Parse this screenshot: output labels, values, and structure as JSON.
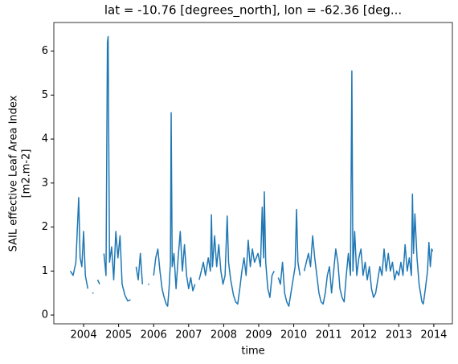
{
  "chart_data": {
    "type": "line",
    "title": "lat = -10.76 [degrees_north], lon = -62.36 [deg...",
    "xlabel": "time",
    "ylabel": [
      "SAIL effective Leaf Area Index",
      "[m2.m-2]"
    ],
    "xlim": [
      2003.15,
      2014.53
    ],
    "ylim": [
      -0.2,
      6.65
    ],
    "xticks": [
      2004,
      2005,
      2006,
      2007,
      2008,
      2009,
      2010,
      2011,
      2012,
      2013,
      2014
    ],
    "yticks": [
      0,
      1,
      2,
      3,
      4,
      5,
      6
    ],
    "series": [
      {
        "color": "#1f77b4",
        "x": [
          2003.62,
          2003.7,
          2003.78,
          2003.86,
          2003.9,
          2003.95,
          2004.0,
          2004.05,
          2004.12,
          2004.2,
          2004.25,
          2004.32,
          2004.4,
          2004.46,
          2004.52,
          2004.58,
          2004.64,
          2004.68,
          2004.7,
          2004.74,
          2004.8,
          2004.86,
          2004.92,
          2004.98,
          2005.04,
          2005.1,
          2005.18,
          2005.26,
          2005.34,
          2005.42,
          2005.5,
          2005.56,
          2005.62,
          2005.68,
          2005.76,
          2005.84,
          2005.9,
          2006.0,
          2006.06,
          2006.12,
          2006.18,
          2006.24,
          2006.3,
          2006.36,
          2006.4,
          2006.44,
          2006.48,
          2006.5,
          2006.53,
          2006.58,
          2006.64,
          2006.7,
          2006.76,
          2006.82,
          2006.88,
          2006.94,
          2007.0,
          2007.06,
          2007.12,
          2007.18,
          2007.24,
          2007.3,
          2007.36,
          2007.42,
          2007.48,
          2007.56,
          2007.62,
          2007.65,
          2007.68,
          2007.74,
          2007.8,
          2007.86,
          2007.92,
          2007.98,
          2008.04,
          2008.1,
          2008.14,
          2008.2,
          2008.28,
          2008.34,
          2008.4,
          2008.46,
          2008.52,
          2008.58,
          2008.64,
          2008.7,
          2008.76,
          2008.82,
          2008.88,
          2008.98,
          2009.05,
          2009.1,
          2009.14,
          2009.16,
          2009.2,
          2009.26,
          2009.32,
          2009.38,
          2009.44,
          2009.5,
          2009.56,
          2009.62,
          2009.68,
          2009.74,
          2009.8,
          2009.86,
          2009.92,
          2009.98,
          2010.04,
          2010.08,
          2010.12,
          2010.18,
          2010.24,
          2010.3,
          2010.36,
          2010.42,
          2010.48,
          2010.54,
          2010.6,
          2010.66,
          2010.72,
          2010.78,
          2010.84,
          2010.9,
          2010.96,
          2011.02,
          2011.08,
          2011.14,
          2011.2,
          2011.26,
          2011.32,
          2011.38,
          2011.44,
          2011.5,
          2011.56,
          2011.62,
          2011.66,
          2011.69,
          2011.74,
          2011.8,
          2011.86,
          2011.92,
          2011.98,
          2012.04,
          2012.1,
          2012.16,
          2012.22,
          2012.28,
          2012.34,
          2012.4,
          2012.46,
          2012.52,
          2012.58,
          2012.64,
          2012.7,
          2012.76,
          2012.82,
          2012.88,
          2012.94,
          2013.0,
          2013.06,
          2013.12,
          2013.18,
          2013.24,
          2013.3,
          2013.36,
          2013.39,
          2013.42,
          2013.46,
          2013.52,
          2013.58,
          2013.62,
          2013.66,
          2013.7,
          2013.76,
          2013.82,
          2013.86,
          2013.9,
          2013.94,
          2013.97
        ],
        "values": [
          1.0,
          0.9,
          1.2,
          2.67,
          1.3,
          1.1,
          1.9,
          0.9,
          0.6,
          null,
          0.5,
          null,
          0.8,
          0.7,
          null,
          1.4,
          0.9,
          6.2,
          6.33,
          1.2,
          1.55,
          0.8,
          1.9,
          1.3,
          1.8,
          0.7,
          0.45,
          0.32,
          0.35,
          null,
          1.1,
          0.8,
          1.4,
          0.7,
          null,
          0.7,
          null,
          0.9,
          1.3,
          1.5,
          1.0,
          0.6,
          0.4,
          0.25,
          0.2,
          0.6,
          1.2,
          4.6,
          1.1,
          1.4,
          0.6,
          1.3,
          1.9,
          1.0,
          1.6,
          0.9,
          0.6,
          0.85,
          0.55,
          0.7,
          null,
          0.8,
          1.0,
          1.2,
          0.9,
          1.3,
          1.0,
          2.28,
          1.1,
          1.8,
          1.1,
          1.6,
          1.0,
          0.7,
          0.9,
          2.25,
          1.2,
          0.8,
          0.45,
          0.3,
          0.25,
          0.6,
          1.0,
          1.3,
          0.9,
          1.7,
          1.1,
          1.5,
          1.2,
          1.4,
          1.1,
          2.45,
          1.3,
          2.8,
          1.2,
          0.6,
          0.4,
          0.9,
          1.0,
          null,
          0.85,
          0.7,
          1.2,
          0.5,
          0.3,
          0.2,
          0.5,
          0.8,
          1.1,
          2.4,
          1.2,
          0.9,
          null,
          1.0,
          1.2,
          1.4,
          1.1,
          1.8,
          1.3,
          0.9,
          0.5,
          0.3,
          0.25,
          0.5,
          0.9,
          1.1,
          0.5,
          1.0,
          1.5,
          1.2,
          0.6,
          0.4,
          0.3,
          0.9,
          1.4,
          0.9,
          5.55,
          1.0,
          1.9,
          0.9,
          1.3,
          1.5,
          0.9,
          1.2,
          0.8,
          1.1,
          0.6,
          0.4,
          0.5,
          0.8,
          1.1,
          0.9,
          1.5,
          1.0,
          1.4,
          1.0,
          1.2,
          0.8,
          1.0,
          0.9,
          1.2,
          0.9,
          1.6,
          1.0,
          1.3,
          0.9,
          2.75,
          1.4,
          2.3,
          1.3,
          0.7,
          0.5,
          0.3,
          0.25,
          0.6,
          1.0,
          1.65,
          1.1,
          1.5,
          1.45
        ]
      }
    ]
  }
}
